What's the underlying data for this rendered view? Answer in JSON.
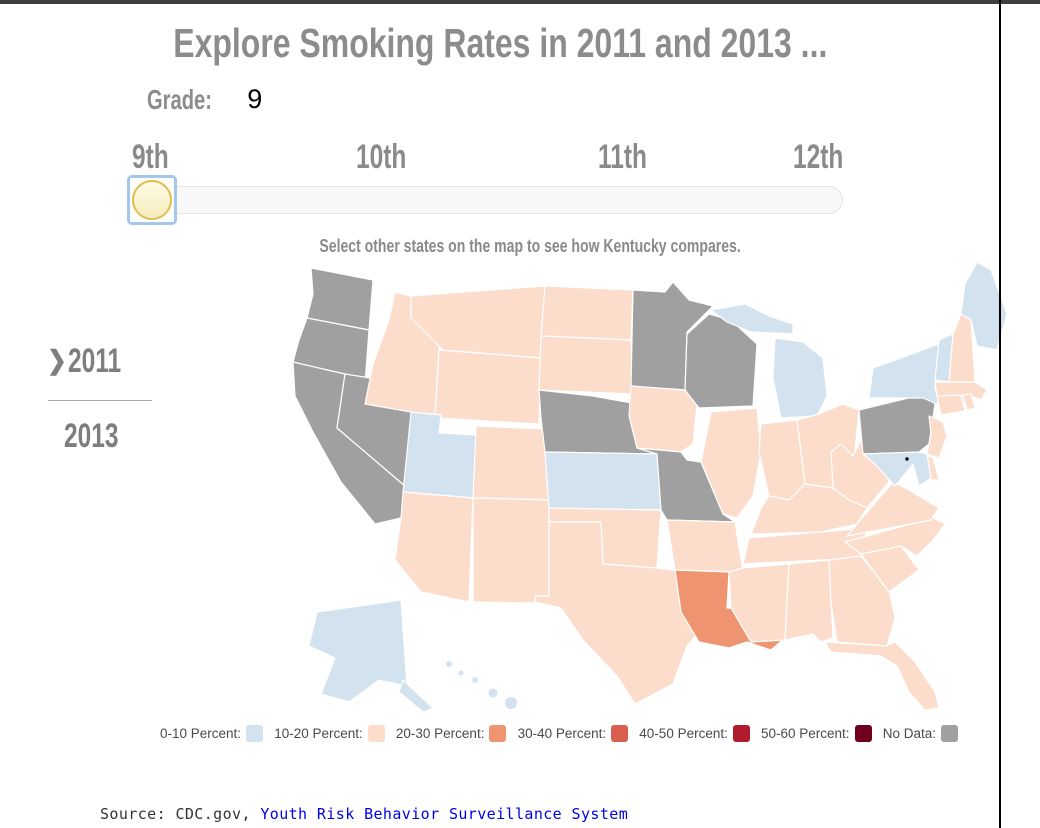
{
  "header": {
    "title": "Explore Smoking Rates in 2011 and 2013 ...",
    "grade_label": "Grade:",
    "grade_value": "9"
  },
  "slider": {
    "tick_labels": [
      "9th",
      "10th",
      "11th",
      "12th"
    ],
    "selected": "9th"
  },
  "instruction": "Select other states on the map to see how Kentucky compares.",
  "year_nav": {
    "chevron": "❯",
    "items": [
      {
        "label": "2011",
        "selected": true
      },
      {
        "label": "2013",
        "selected": false
      }
    ]
  },
  "legend": {
    "items": [
      {
        "label": "0-10 Percent:",
        "key": "0-10"
      },
      {
        "label": "10-20 Percent:",
        "key": "10-20"
      },
      {
        "label": "20-30 Percent:",
        "key": "20-30"
      },
      {
        "label": "30-40 Percent:",
        "key": "30-40"
      },
      {
        "label": "40-50 Percent:",
        "key": "40-50"
      },
      {
        "label": "50-60 Percent:",
        "key": "50-60"
      },
      {
        "label": "No Data:",
        "key": "No Data"
      }
    ]
  },
  "source": {
    "prefix": "Source: CDC.gov, ",
    "link_text": "Youth Risk Behavior Surveillance System"
  },
  "chart_data": {
    "type": "choropleth_map",
    "title": "Explore Smoking Rates in 2011 and 2013 ...",
    "region": "United States",
    "selected_grade": "9",
    "selected_year": "2011",
    "highlight_state": "Kentucky",
    "unit": "smoking rate (percent), category bins",
    "categories": [
      "0-10",
      "10-20",
      "20-30",
      "30-40",
      "40-50",
      "50-60",
      "No Data"
    ],
    "colors": {
      "0-10": "#d2e2ef",
      "10-20": "#fcdccb",
      "20-30": "#ef9470",
      "30-40": "#d95f4e",
      "40-50": "#b01b2e",
      "50-60": "#70001f",
      "No Data": "#a0a0a0"
    },
    "state_values": {
      "WA": "No Data",
      "OR": "No Data",
      "CA": "No Data",
      "NV": "No Data",
      "MN": "No Data",
      "WI": "No Data",
      "NE": "No Data",
      "MO": "No Data",
      "PA": "No Data",
      "UT": "0-10",
      "KS": "0-10",
      "MI": "0-10",
      "NY": "0-10",
      "VT": "0-10",
      "ME": "0-10",
      "MD": "0-10",
      "AK": "0-10",
      "HI": "0-10",
      "MT": "10-20",
      "ID": "10-20",
      "WY": "10-20",
      "CO": "10-20",
      "AZ": "10-20",
      "NM": "10-20",
      "ND": "10-20",
      "SD": "10-20",
      "OK": "10-20",
      "TX": "10-20",
      "IA": "10-20",
      "AR": "10-20",
      "IL": "10-20",
      "IN": "10-20",
      "OH": "10-20",
      "KY": "10-20",
      "TN": "10-20",
      "MS": "10-20",
      "AL": "10-20",
      "GA": "10-20",
      "FL": "10-20",
      "SC": "10-20",
      "NC": "10-20",
      "VA": "10-20",
      "WV": "10-20",
      "NH": "10-20",
      "MA": "10-20",
      "RI": "10-20",
      "CT": "10-20",
      "NJ": "10-20",
      "DE": "10-20",
      "LA": "20-30"
    },
    "dc_marker": true
  }
}
